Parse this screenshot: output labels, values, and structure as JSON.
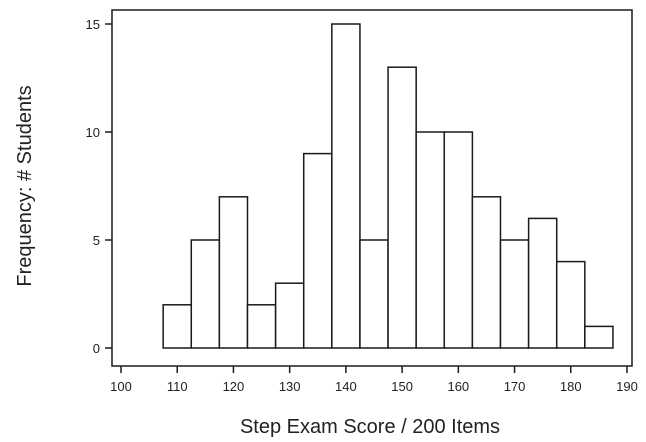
{
  "chart_data": {
    "type": "bar",
    "title": "",
    "xlabel": "Step Exam Score / 200 Items",
    "ylabel": "Frequency: # Students",
    "bin_width": 5,
    "bins": [
      {
        "x0": 107.5,
        "x1": 112.5,
        "count": 2
      },
      {
        "x0": 112.5,
        "x1": 117.5,
        "count": 5
      },
      {
        "x0": 117.5,
        "x1": 122.5,
        "count": 7
      },
      {
        "x0": 122.5,
        "x1": 127.5,
        "count": 2
      },
      {
        "x0": 127.5,
        "x1": 132.5,
        "count": 3
      },
      {
        "x0": 132.5,
        "x1": 137.5,
        "count": 9
      },
      {
        "x0": 137.5,
        "x1": 142.5,
        "count": 15
      },
      {
        "x0": 142.5,
        "x1": 147.5,
        "count": 5
      },
      {
        "x0": 147.5,
        "x1": 152.5,
        "count": 13
      },
      {
        "x0": 152.5,
        "x1": 157.5,
        "count": 10
      },
      {
        "x0": 157.5,
        "x1": 162.5,
        "count": 10
      },
      {
        "x0": 162.5,
        "x1": 167.5,
        "count": 7
      },
      {
        "x0": 167.5,
        "x1": 172.5,
        "count": 5
      },
      {
        "x0": 172.5,
        "x1": 177.5,
        "count": 6
      },
      {
        "x0": 177.5,
        "x1": 182.5,
        "count": 4
      },
      {
        "x0": 182.5,
        "x1": 187.5,
        "count": 1
      }
    ],
    "xlim": [
      100,
      190
    ],
    "ylim": [
      0,
      15
    ],
    "xticks": [
      100,
      110,
      120,
      130,
      140,
      150,
      160,
      170,
      180,
      190
    ],
    "xtick_labels": [
      "100",
      "110",
      "120",
      "130",
      "140",
      "150",
      "160",
      "170",
      "180",
      "190"
    ],
    "yticks": [
      0,
      5,
      10,
      15
    ],
    "ytick_labels": [
      "0",
      "5",
      "10",
      "15"
    ],
    "grid": false,
    "legend": "none",
    "colors": {
      "bar_fill": "#ffffff",
      "bar_stroke": "#1a1a1a",
      "axis": "#1a1a1a"
    }
  }
}
